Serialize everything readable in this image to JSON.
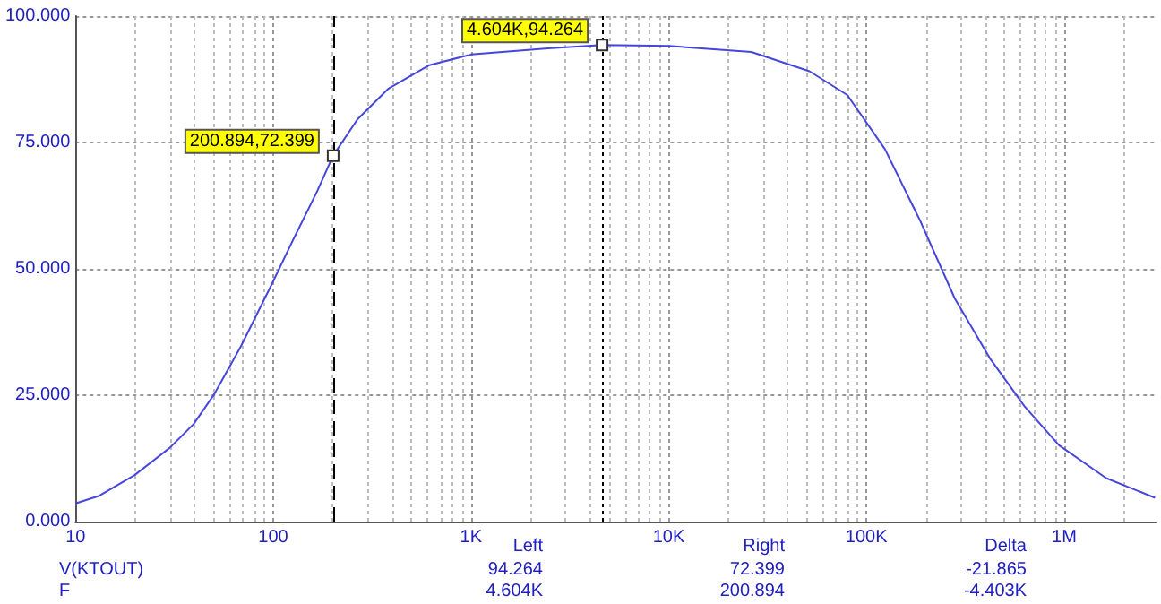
{
  "chart_data": {
    "type": "line",
    "x": [
      10,
      13.2,
      19.9,
      30,
      39.6,
      50.3,
      68.7,
      97,
      127,
      167,
      200.894,
      267,
      381,
      616,
      1000,
      2450,
      4604,
      10000,
      26200,
      51500,
      80000,
      124000,
      187000,
      280000,
      421000,
      630000,
      942000,
      1630000,
      2880000
    ],
    "series": [
      {
        "color": "#4646dc",
        "values": [
          3.6,
          5.1,
          9.2,
          14.6,
          19.3,
          25.2,
          34.7,
          46.5,
          56,
          65.4,
          72.399,
          79.6,
          85.6,
          90.3,
          92.4,
          93.6,
          94.264,
          94.1,
          92.9,
          89.1,
          84.4,
          73.7,
          59.5,
          44.1,
          32.3,
          22.8,
          15.1,
          8.6,
          4.7
        ]
      }
    ],
    "log": "x",
    "xlim": [
      10,
      2900000
    ],
    "ylim": [
      0,
      100
    ],
    "xticks": [
      10,
      100,
      {
        "value": 1000,
        "label": "1K"
      },
      {
        "value": 10000,
        "label": "10K"
      },
      {
        "value": 100000,
        "label": "100K"
      },
      {
        "value": 1000000,
        "label": "1M"
      }
    ],
    "yticks": [
      {
        "value": 0,
        "label": "0.000"
      },
      {
        "value": 25,
        "label": "25.000"
      },
      {
        "value": 50,
        "label": "50.000"
      },
      {
        "value": 75,
        "label": "75.000"
      },
      {
        "value": 100,
        "label": "100.000"
      }
    ],
    "grid": true,
    "marker": "none",
    "line_style": "solid",
    "ref_lines": [
      {
        "axis": "x",
        "value": 200.894,
        "line_style": "dashed",
        "color": "#000000"
      },
      {
        "axis": "x",
        "value": 4604,
        "line_style": "dotted",
        "color": "#000000"
      }
    ],
    "annotations": [
      {
        "text": "200.894,72.399",
        "x": 200.894,
        "y": 72.399
      },
      {
        "text": "4.604K,94.264",
        "x": 4604,
        "y": 94.264
      },
      "Left",
      "Right",
      "Delta",
      "V(KTOUT)",
      "94.264",
      "72.399",
      "-21.865",
      "F",
      "4.604K",
      "200.894",
      "-4.403K"
    ]
  }
}
